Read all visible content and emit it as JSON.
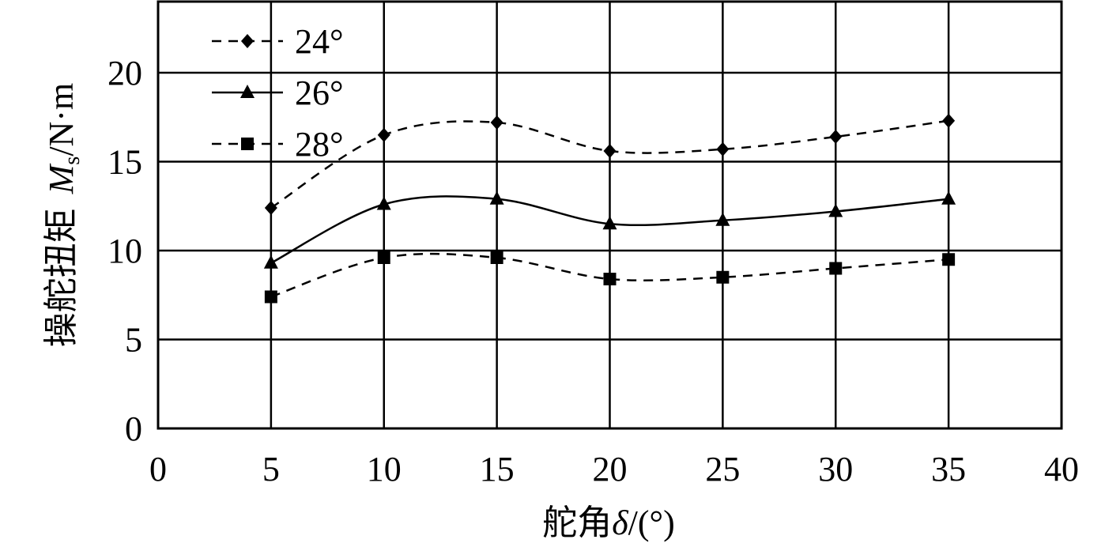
{
  "chart_data": {
    "type": "line",
    "xlabel": [
      "舵角",
      "δ",
      "/(°)"
    ],
    "ylabel": [
      "操舵扭矩",
      "M",
      "s",
      "/N·m"
    ],
    "x": [
      5,
      10,
      15,
      20,
      25,
      30,
      35
    ],
    "series": [
      {
        "name": "24°",
        "color": "#000000",
        "line_style": "dashed",
        "marker": "diamond",
        "values": [
          12.4,
          16.5,
          17.2,
          15.6,
          15.7,
          16.4,
          17.3
        ]
      },
      {
        "name": "26°",
        "color": "#000000",
        "line_style": "solid",
        "marker": "triangle",
        "values": [
          9.3,
          12.6,
          12.9,
          11.5,
          11.7,
          12.2,
          12.9
        ]
      },
      {
        "name": "28°",
        "color": "#000000",
        "line_style": "dashed",
        "marker": "square",
        "values": [
          7.4,
          9.6,
          9.6,
          8.4,
          8.5,
          9.0,
          9.5
        ]
      }
    ],
    "xlim": [
      0,
      40
    ],
    "xticks": [
      0,
      5,
      10,
      15,
      20,
      25,
      30,
      35,
      40
    ],
    "ylim": [
      0,
      24
    ],
    "yticks": [
      0,
      5,
      10,
      15,
      20
    ],
    "grid": true,
    "legend": "upper left"
  }
}
